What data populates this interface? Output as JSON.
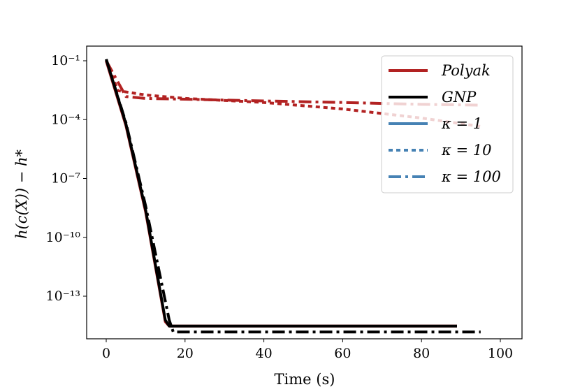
{
  "chart_data": {
    "type": "line",
    "title": "",
    "xlabel": "Time (s)",
    "ylabel": "h(c(X)) − h*",
    "yscale": "log",
    "xlim": [
      -5,
      105
    ],
    "ylim": [
      2e-16,
      1
    ],
    "grid": false,
    "legend_position": "top-right",
    "x_ticks": [
      0,
      20,
      40,
      60,
      80,
      100
    ],
    "y_ticks": [
      {
        "value": 0.1,
        "label": "10⁻¹"
      },
      {
        "value": 0.0001,
        "label": "10⁻⁴"
      },
      {
        "value": 1e-07,
        "label": "10⁻⁷"
      },
      {
        "value": 1e-10,
        "label": "10⁻¹⁰"
      },
      {
        "value": 1e-13,
        "label": "10⁻¹³"
      }
    ],
    "legend": [
      {
        "label": "Polyak",
        "color": "#b22222",
        "dash": "solid"
      },
      {
        "label": "GNP",
        "color": "#000000",
        "dash": "solid"
      },
      {
        "label": "κ = 1",
        "color": "#4682b4",
        "dash": "solid"
      },
      {
        "label": "κ = 10",
        "color": "#4682b4",
        "dash": "dotted"
      },
      {
        "label": "κ = 100",
        "color": "#4682b4",
        "dash": "dashdot"
      }
    ],
    "series": [
      {
        "name": "Polyak, κ = 1",
        "color": "#b22222",
        "dash": "solid",
        "x": [
          0,
          5,
          10,
          15,
          16,
          30,
          60,
          89
        ],
        "y": [
          0.1,
          5e-05,
          2e-09,
          5e-15,
          3e-15,
          3e-15,
          3e-15,
          3e-15
        ]
      },
      {
        "name": "Polyak, κ = 10",
        "color": "#b22222",
        "dash": "dotted",
        "x": [
          0,
          3,
          10,
          20,
          40,
          60,
          80,
          95
        ],
        "y": [
          0.1,
          0.003,
          0.0018,
          0.0012,
          0.00075,
          0.00035,
          0.00012,
          4.5e-05
        ]
      },
      {
        "name": "Polyak, κ = 100",
        "color": "#b22222",
        "dash": "dashdot",
        "x": [
          0,
          5,
          10,
          20,
          40,
          60,
          80,
          95
        ],
        "y": [
          0.1,
          0.0015,
          0.0012,
          0.0011,
          0.0009,
          0.00075,
          0.0006,
          0.00055
        ]
      },
      {
        "name": "GNP, κ = 1",
        "color": "#000000",
        "dash": "solid",
        "x": [
          0,
          5,
          10,
          15,
          16,
          30,
          60,
          89
        ],
        "y": [
          0.12,
          6e-05,
          2.5e-09,
          6e-15,
          3e-15,
          3e-15,
          3e-15,
          3e-15
        ]
      },
      {
        "name": "GNP, κ = 100",
        "color": "#000000",
        "dash": "dashdot",
        "x": [
          0,
          5,
          10,
          16,
          17,
          30,
          60,
          95
        ],
        "y": [
          0.12,
          7e-05,
          4e-09,
          6e-15,
          1.5e-15,
          1.5e-15,
          1.5e-15,
          1.5e-15
        ]
      }
    ]
  }
}
